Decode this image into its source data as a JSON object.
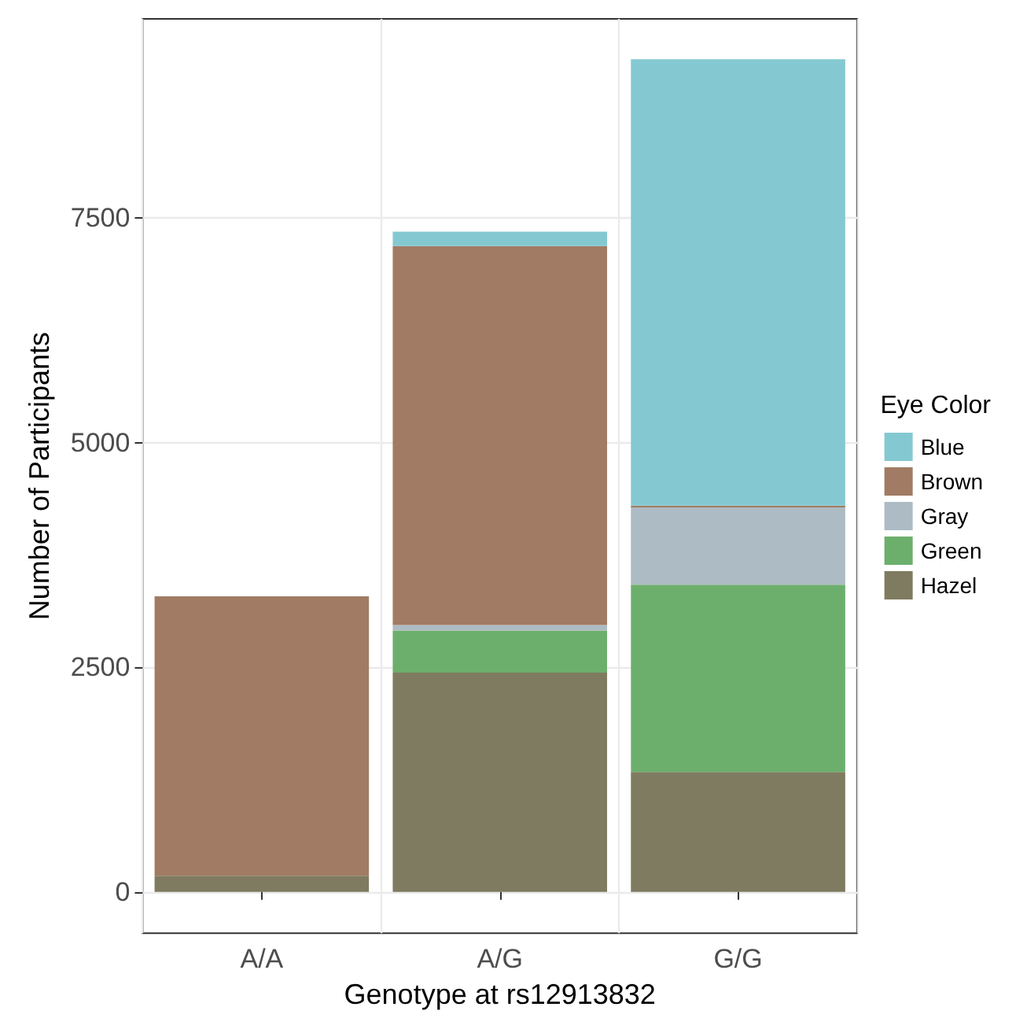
{
  "chart_data": {
    "type": "bar",
    "stacked": true,
    "xlabel": "Genotype at rs12913832",
    "ylabel": "Number of Participants",
    "legend_title": "Eye Color",
    "categories": [
      "A/A",
      "A/G",
      "G/G"
    ],
    "series": [
      {
        "name": "Hazel",
        "color": "#7f7b60",
        "values": [
          180,
          2440,
          1335
        ]
      },
      {
        "name": "Green",
        "color": "#6caf6c",
        "values": [
          0,
          470,
          2085
        ]
      },
      {
        "name": "Gray",
        "color": "#adbbc4",
        "values": [
          0,
          60,
          860
        ]
      },
      {
        "name": "Brown",
        "color": "#a17b63",
        "values": [
          3110,
          4220,
          20
        ]
      },
      {
        "name": "Blue",
        "color": "#84c9d1",
        "values": [
          0,
          160,
          4970
        ]
      }
    ],
    "ylim": [
      -460,
      9720
    ],
    "yticks": [
      0,
      2500,
      5000,
      7500
    ],
    "grid": true,
    "legend": "right"
  }
}
